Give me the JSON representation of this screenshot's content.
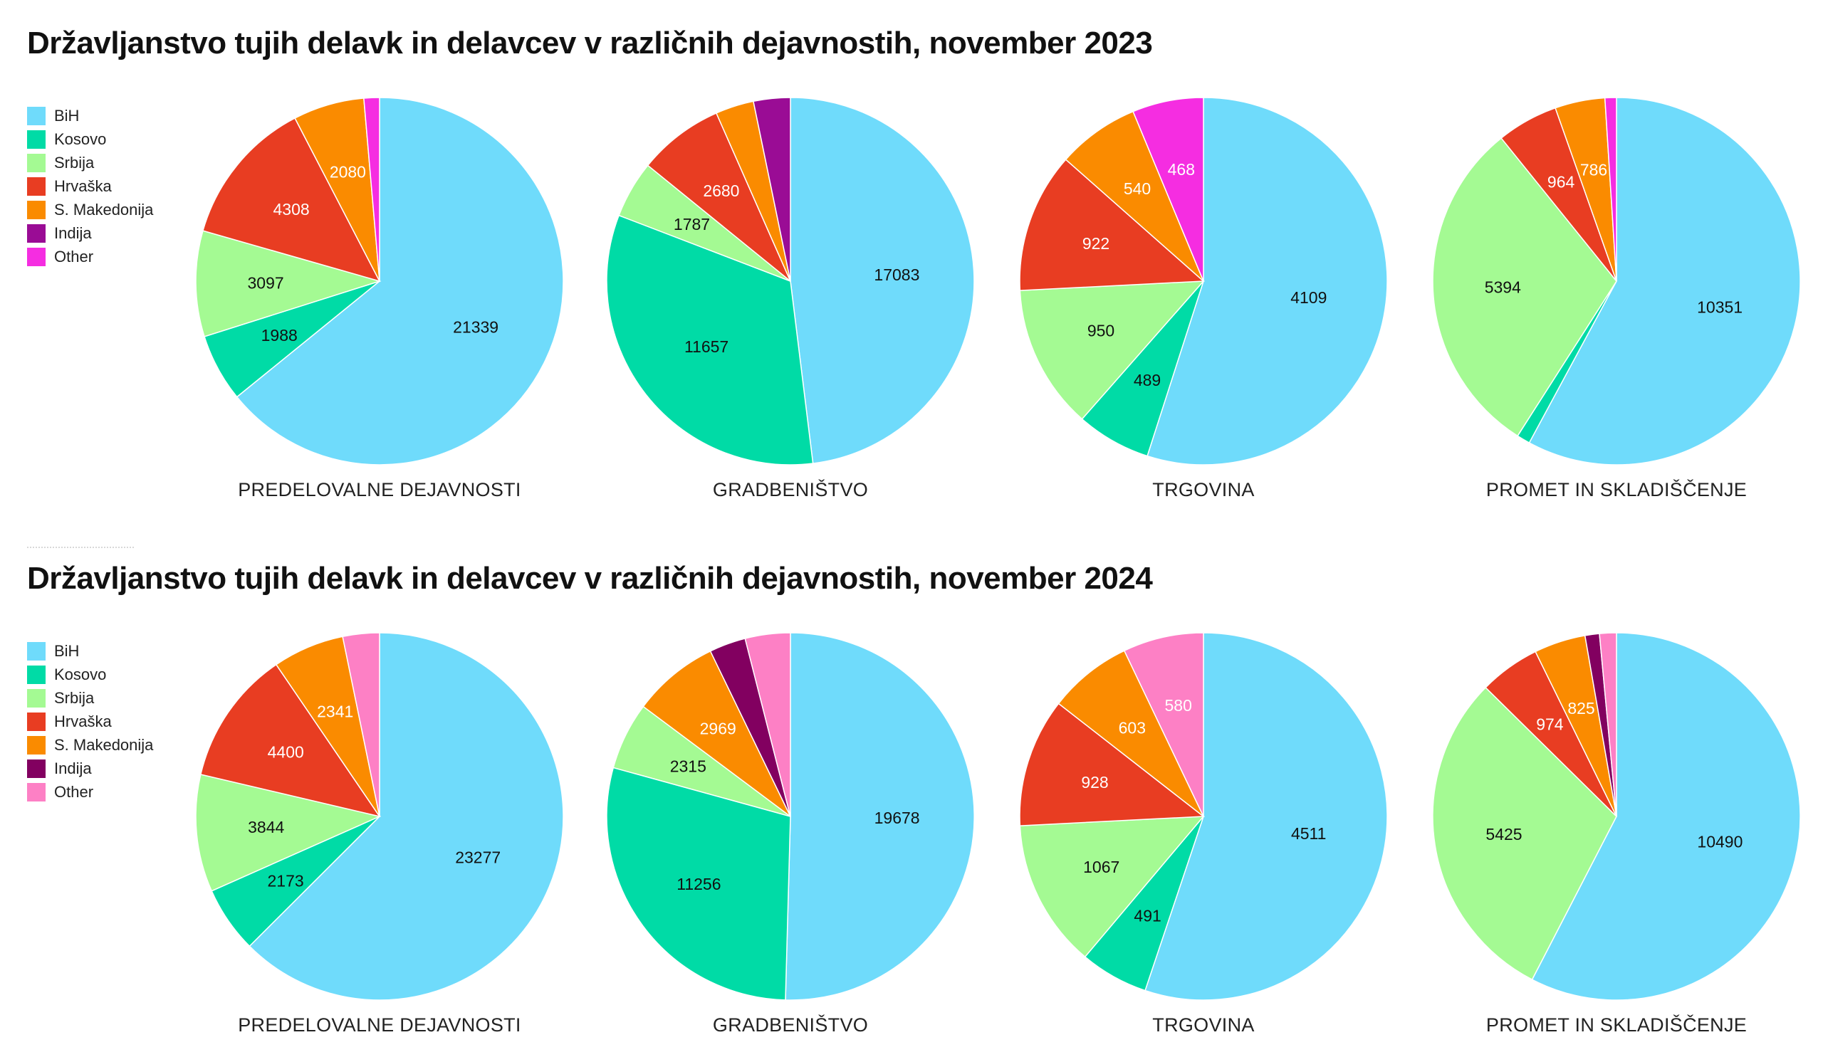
{
  "charts": [
    {
      "title": "Državljanstvo tujih delavk in delavcev v različnih dejavnostih, november 2023",
      "legend": [
        {
          "label": "BiH",
          "color": "#6fdbfb"
        },
        {
          "label": "Kosovo",
          "color": "#00dba6"
        },
        {
          "label": "Srbija",
          "color": "#a4fa93"
        },
        {
          "label": "Hrvaška",
          "color": "#e83d22"
        },
        {
          "label": "S. Makedonija",
          "color": "#fa8b00"
        },
        {
          "label": "Indija",
          "color": "#9a0c95"
        },
        {
          "label": "Other",
          "color": "#f52de1"
        }
      ]
    },
    {
      "title": "Državljanstvo tujih delavk in delavcev v različnih dejavnostih, november 2024",
      "legend": [
        {
          "label": "BiH",
          "color": "#6fdbfb"
        },
        {
          "label": "Kosovo",
          "color": "#00dba6"
        },
        {
          "label": "Srbija",
          "color": "#a4fa93"
        },
        {
          "label": "Hrvaška",
          "color": "#e83d22"
        },
        {
          "label": "S. Makedonija",
          "color": "#fa8b00"
        },
        {
          "label": "Indija",
          "color": "#820060"
        },
        {
          "label": "Other",
          "color": "#fd80c5"
        }
      ]
    }
  ],
  "chart_data": [
    {
      "type": "pie",
      "title": "Državljanstvo tujih delavk in delavcev v različnih dejavnostih, november 2023",
      "series_names": [
        "BiH",
        "Kosovo",
        "Srbija",
        "Hrvaška",
        "S. Makedonija",
        "Indija",
        "Other"
      ],
      "colors": [
        "#6fdbfb",
        "#00dba6",
        "#a4fa93",
        "#e83d22",
        "#fa8b00",
        "#9a0c95",
        "#f52de1"
      ],
      "label_colors": [
        "#111111",
        "#111111",
        "#111111",
        "#ffffff",
        "#ffffff",
        "#ffffff",
        "#ffffff"
      ],
      "pies": [
        {
          "category": "PREDELOVALNE DEJAVNOSTI",
          "values": [
            21339,
            1988,
            3097,
            4308,
            2080,
            0,
            455
          ],
          "labels": [
            "21339",
            "1988",
            "3097",
            "4308",
            "2080",
            "",
            ""
          ]
        },
        {
          "category": "GRADBENIŠTVO",
          "values": [
            17083,
            11657,
            1787,
            2680,
            1200,
            1150,
            0
          ],
          "labels": [
            "17083",
            "11657",
            "1787",
            "2680",
            "",
            "",
            ""
          ]
        },
        {
          "category": "TRGOVINA",
          "values": [
            4109,
            489,
            950,
            922,
            540,
            0,
            468
          ],
          "labels": [
            "4109",
            "489",
            "950",
            "922",
            "540",
            "",
            "468"
          ]
        },
        {
          "category": "PROMET IN SKLADIŠČENJE",
          "values": [
            10351,
            210,
            5394,
            964,
            786,
            0,
            180
          ],
          "labels": [
            "10351",
            "",
            "5394",
            "964",
            "786",
            "",
            ""
          ]
        }
      ]
    },
    {
      "type": "pie",
      "title": "Državljanstvo tujih delavk in delavcev v različnih dejavnostih, november 2024",
      "series_names": [
        "BiH",
        "Kosovo",
        "Srbija",
        "Hrvaška",
        "S. Makedonija",
        "Indija",
        "Other"
      ],
      "colors": [
        "#6fdbfb",
        "#00dba6",
        "#a4fa93",
        "#e83d22",
        "#fa8b00",
        "#820060",
        "#fd80c5"
      ],
      "label_colors": [
        "#111111",
        "#111111",
        "#111111",
        "#ffffff",
        "#ffffff",
        "#ffffff",
        "#ffffff"
      ],
      "pies": [
        {
          "category": "PREDELOVALNE DEJAVNOSTI",
          "values": [
            23277,
            2173,
            3844,
            4400,
            2341,
            0,
            1200
          ],
          "labels": [
            "23277",
            "2173",
            "3844",
            "4400",
            "2341",
            "",
            ""
          ]
        },
        {
          "category": "GRADBENIŠTVO",
          "values": [
            19678,
            11256,
            2315,
            0,
            2969,
            1250,
            1550
          ],
          "labels": [
            "19678",
            "11256",
            "2315",
            "",
            "2969",
            "",
            ""
          ]
        },
        {
          "category": "TRGOVINA",
          "values": [
            4511,
            491,
            1067,
            928,
            603,
            0,
            580
          ],
          "labels": [
            "4511",
            "491",
            "1067",
            "928",
            "603",
            "",
            "580"
          ]
        },
        {
          "category": "PROMET IN SKLADIŠČENJE",
          "values": [
            10490,
            0,
            5425,
            974,
            825,
            230,
            270
          ],
          "labels": [
            "10490",
            "",
            "5425",
            "974",
            "825",
            "",
            ""
          ]
        }
      ]
    }
  ]
}
